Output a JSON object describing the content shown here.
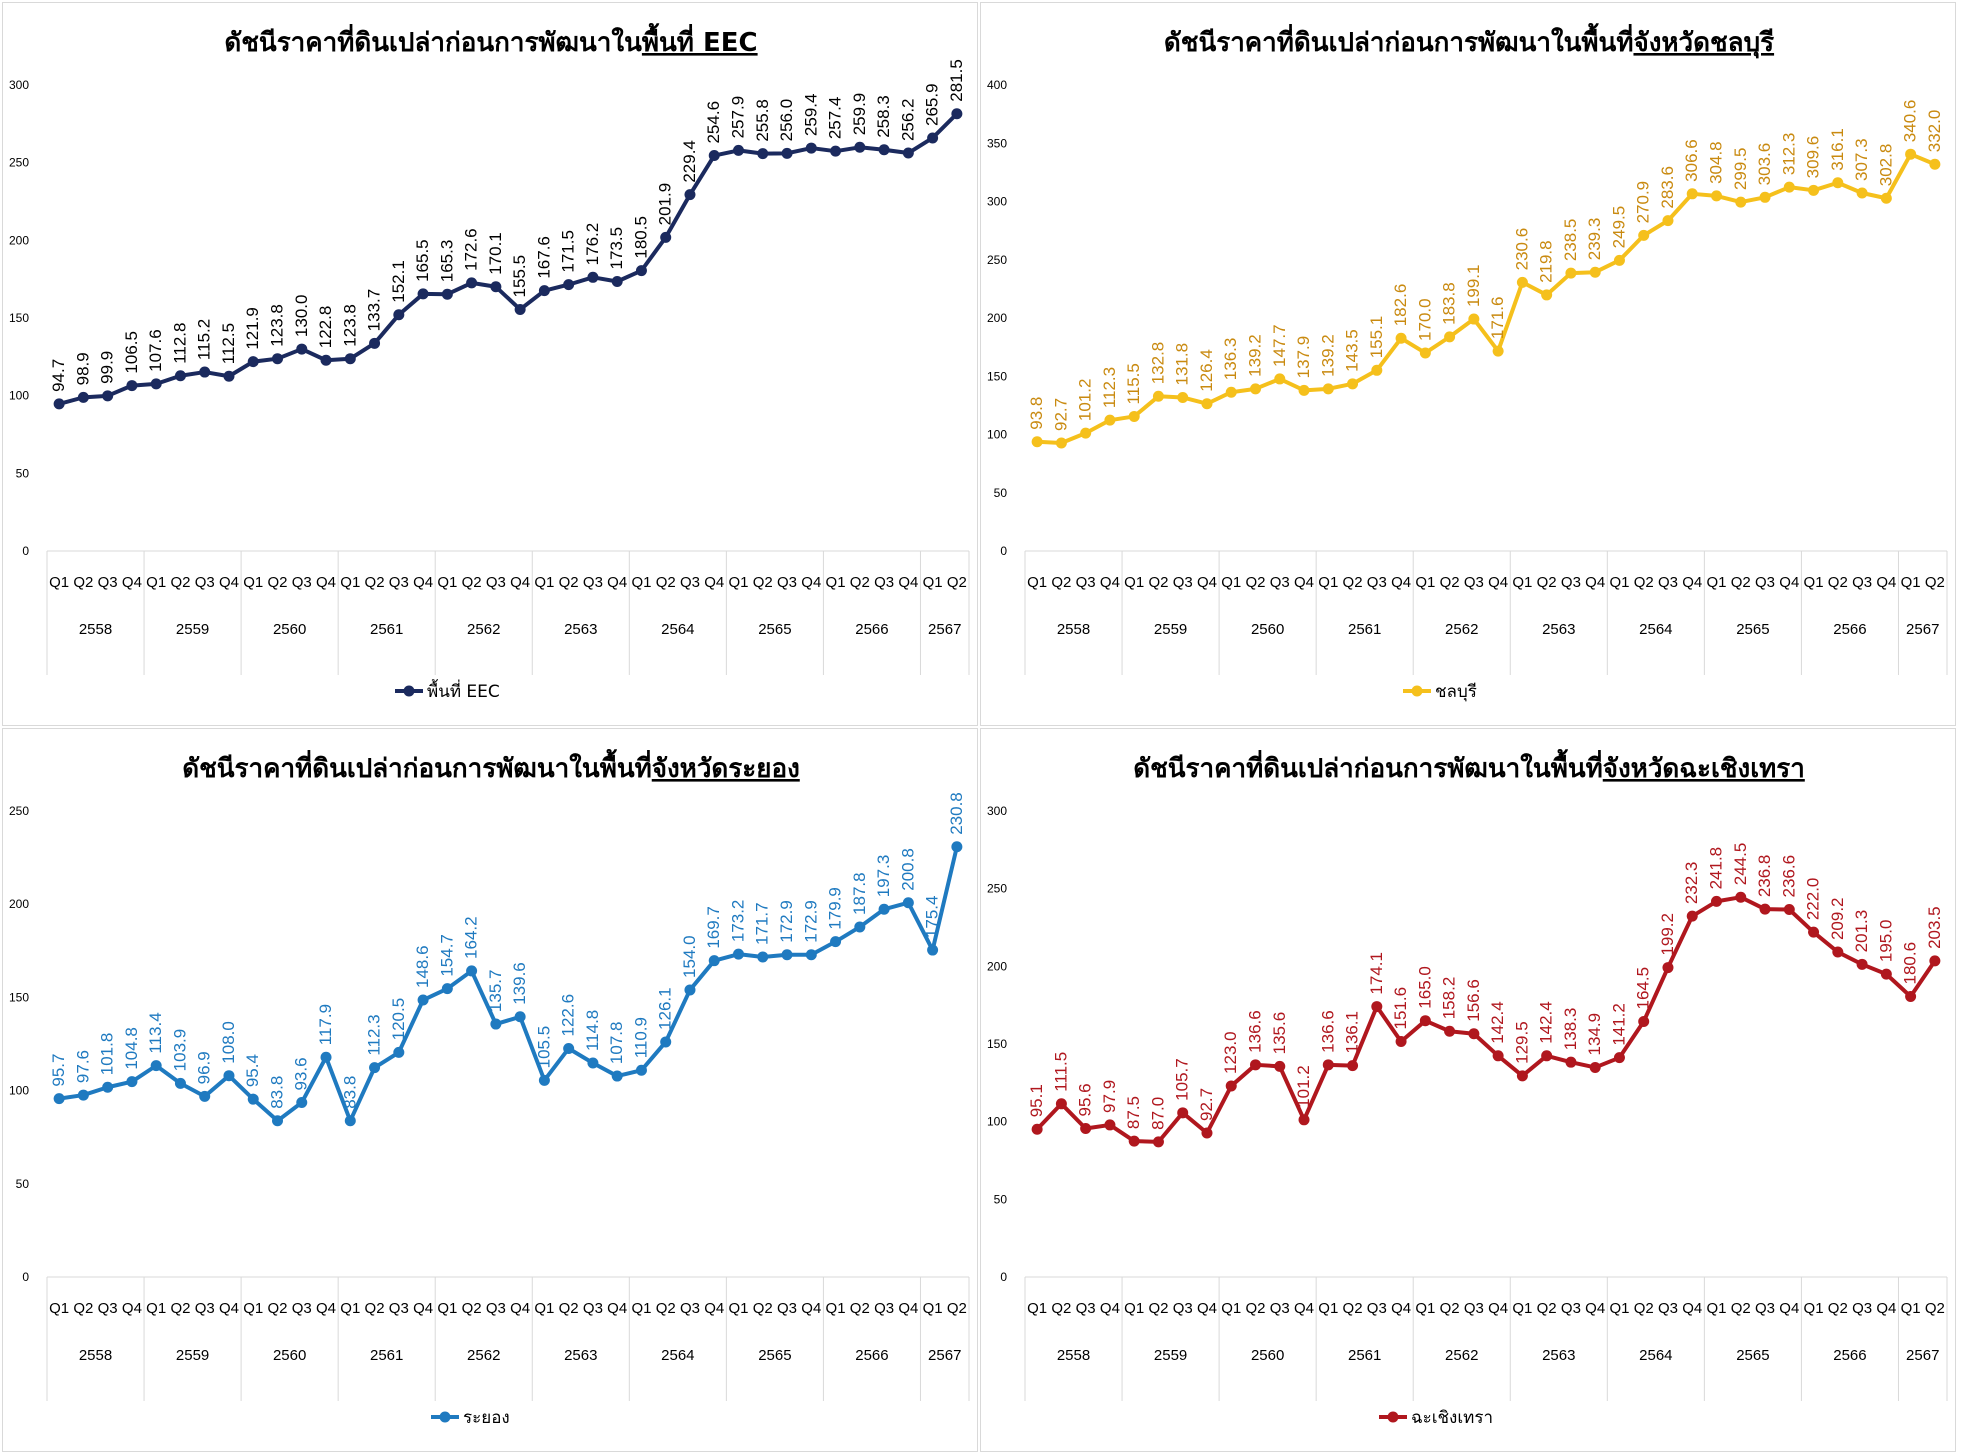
{
  "chart_data": [
    {
      "type": "line",
      "title_plain": "ดัชนีราคาที่ดินเปล่าก่อนการพัฒนาใน",
      "title_underlined": "พื้นที่ EEC",
      "series": [
        {
          "name": "พื้นที่ EEC",
          "color": "#1b2a5e",
          "label_color": "#000000",
          "values": [
            94.7,
            98.9,
            99.9,
            106.5,
            107.6,
            112.8,
            115.2,
            112.5,
            121.9,
            123.8,
            130.0,
            122.8,
            123.8,
            133.7,
            152.1,
            165.5,
            165.3,
            172.6,
            170.1,
            155.5,
            167.6,
            171.5,
            176.2,
            173.5,
            180.5,
            201.9,
            229.4,
            254.6,
            257.9,
            255.8,
            256.0,
            259.4,
            257.4,
            259.9,
            258.3,
            256.2,
            265.9,
            281.5
          ]
        }
      ],
      "ylim": [
        0,
        300
      ],
      "yticks": [
        0,
        50,
        100,
        150,
        200,
        250,
        300
      ],
      "xlabel": "",
      "ylabel": ""
    },
    {
      "type": "line",
      "title_plain": "ดัชนีราคาที่ดินเปล่าก่อนการพัฒนาในพื้นที่",
      "title_underlined": "จังหวัดชลบุรี",
      "series": [
        {
          "name": "ชลบุรี",
          "color": "#f5c01c",
          "label_color": "#c98a10",
          "values": [
            93.8,
            92.7,
            101.2,
            112.3,
            115.5,
            132.8,
            131.8,
            126.4,
            136.3,
            139.2,
            147.7,
            137.9,
            139.2,
            143.5,
            155.1,
            182.6,
            170.0,
            183.8,
            199.1,
            171.6,
            230.6,
            219.8,
            238.5,
            239.3,
            249.5,
            270.9,
            283.6,
            306.6,
            304.8,
            299.5,
            303.6,
            312.3,
            309.6,
            316.1,
            307.3,
            302.8,
            340.6,
            332.0
          ]
        }
      ],
      "ylim": [
        0,
        400
      ],
      "yticks": [
        0,
        50,
        100,
        150,
        200,
        250,
        300,
        350,
        400
      ],
      "xlabel": "",
      "ylabel": ""
    },
    {
      "type": "line",
      "title_plain": "ดัชนีราคาที่ดินเปล่าก่อนการพัฒนาในพื้นที่",
      "title_underlined": "จังหวัดระยอง",
      "series": [
        {
          "name": "ระยอง",
          "color": "#1f7ac0",
          "label_color": "#1f7ac0",
          "values": [
            95.7,
            97.6,
            101.8,
            104.8,
            113.4,
            103.9,
            96.9,
            108.0,
            95.4,
            83.8,
            93.6,
            117.9,
            83.8,
            112.3,
            120.5,
            148.6,
            154.7,
            164.2,
            135.7,
            139.6,
            105.5,
            122.6,
            114.8,
            107.8,
            110.9,
            126.1,
            154.0,
            169.7,
            173.2,
            171.7,
            172.9,
            172.9,
            179.9,
            187.8,
            197.3,
            200.8,
            175.4,
            230.8
          ]
        }
      ],
      "ylim": [
        0,
        250
      ],
      "yticks": [
        0,
        50,
        100,
        150,
        200,
        250
      ],
      "xlabel": "",
      "ylabel": ""
    },
    {
      "type": "line",
      "title_plain": "ดัชนีราคาที่ดินเปล่าก่อนการพัฒนาในพื้นที่",
      "title_underlined": "จังหวัดฉะเชิงเทรา",
      "series": [
        {
          "name": "ฉะเชิงเทรา",
          "color": "#b0171e",
          "label_color": "#b0171e",
          "values": [
            95.1,
            111.5,
            95.6,
            97.9,
            87.5,
            87.0,
            105.7,
            92.7,
            123.0,
            136.6,
            135.6,
            101.2,
            136.6,
            136.1,
            174.1,
            151.6,
            165.0,
            158.2,
            156.6,
            142.4,
            129.5,
            142.4,
            138.3,
            134.9,
            141.2,
            164.5,
            199.2,
            232.3,
            241.8,
            244.5,
            236.8,
            236.6,
            222.0,
            209.2,
            201.3,
            195.0,
            180.6,
            203.5
          ]
        }
      ],
      "ylim": [
        0,
        300
      ],
      "yticks": [
        0,
        50,
        100,
        150,
        200,
        250,
        300
      ],
      "xlabel": "",
      "ylabel": ""
    }
  ],
  "x_quarters": [
    "Q1",
    "Q2",
    "Q3",
    "Q4",
    "Q1",
    "Q2",
    "Q3",
    "Q4",
    "Q1",
    "Q2",
    "Q3",
    "Q4",
    "Q1",
    "Q2",
    "Q3",
    "Q4",
    "Q1",
    "Q2",
    "Q3",
    "Q4",
    "Q1",
    "Q2",
    "Q3",
    "Q4",
    "Q1",
    "Q2",
    "Q3",
    "Q4",
    "Q1",
    "Q2",
    "Q3",
    "Q4",
    "Q1",
    "Q2",
    "Q3",
    "Q4",
    "Q1",
    "Q2"
  ],
  "x_years": [
    "2558",
    "2559",
    "2560",
    "2561",
    "2562",
    "2563",
    "2564",
    "2565",
    "2566",
    "2567"
  ],
  "legend_position": "bottom",
  "grid": false
}
